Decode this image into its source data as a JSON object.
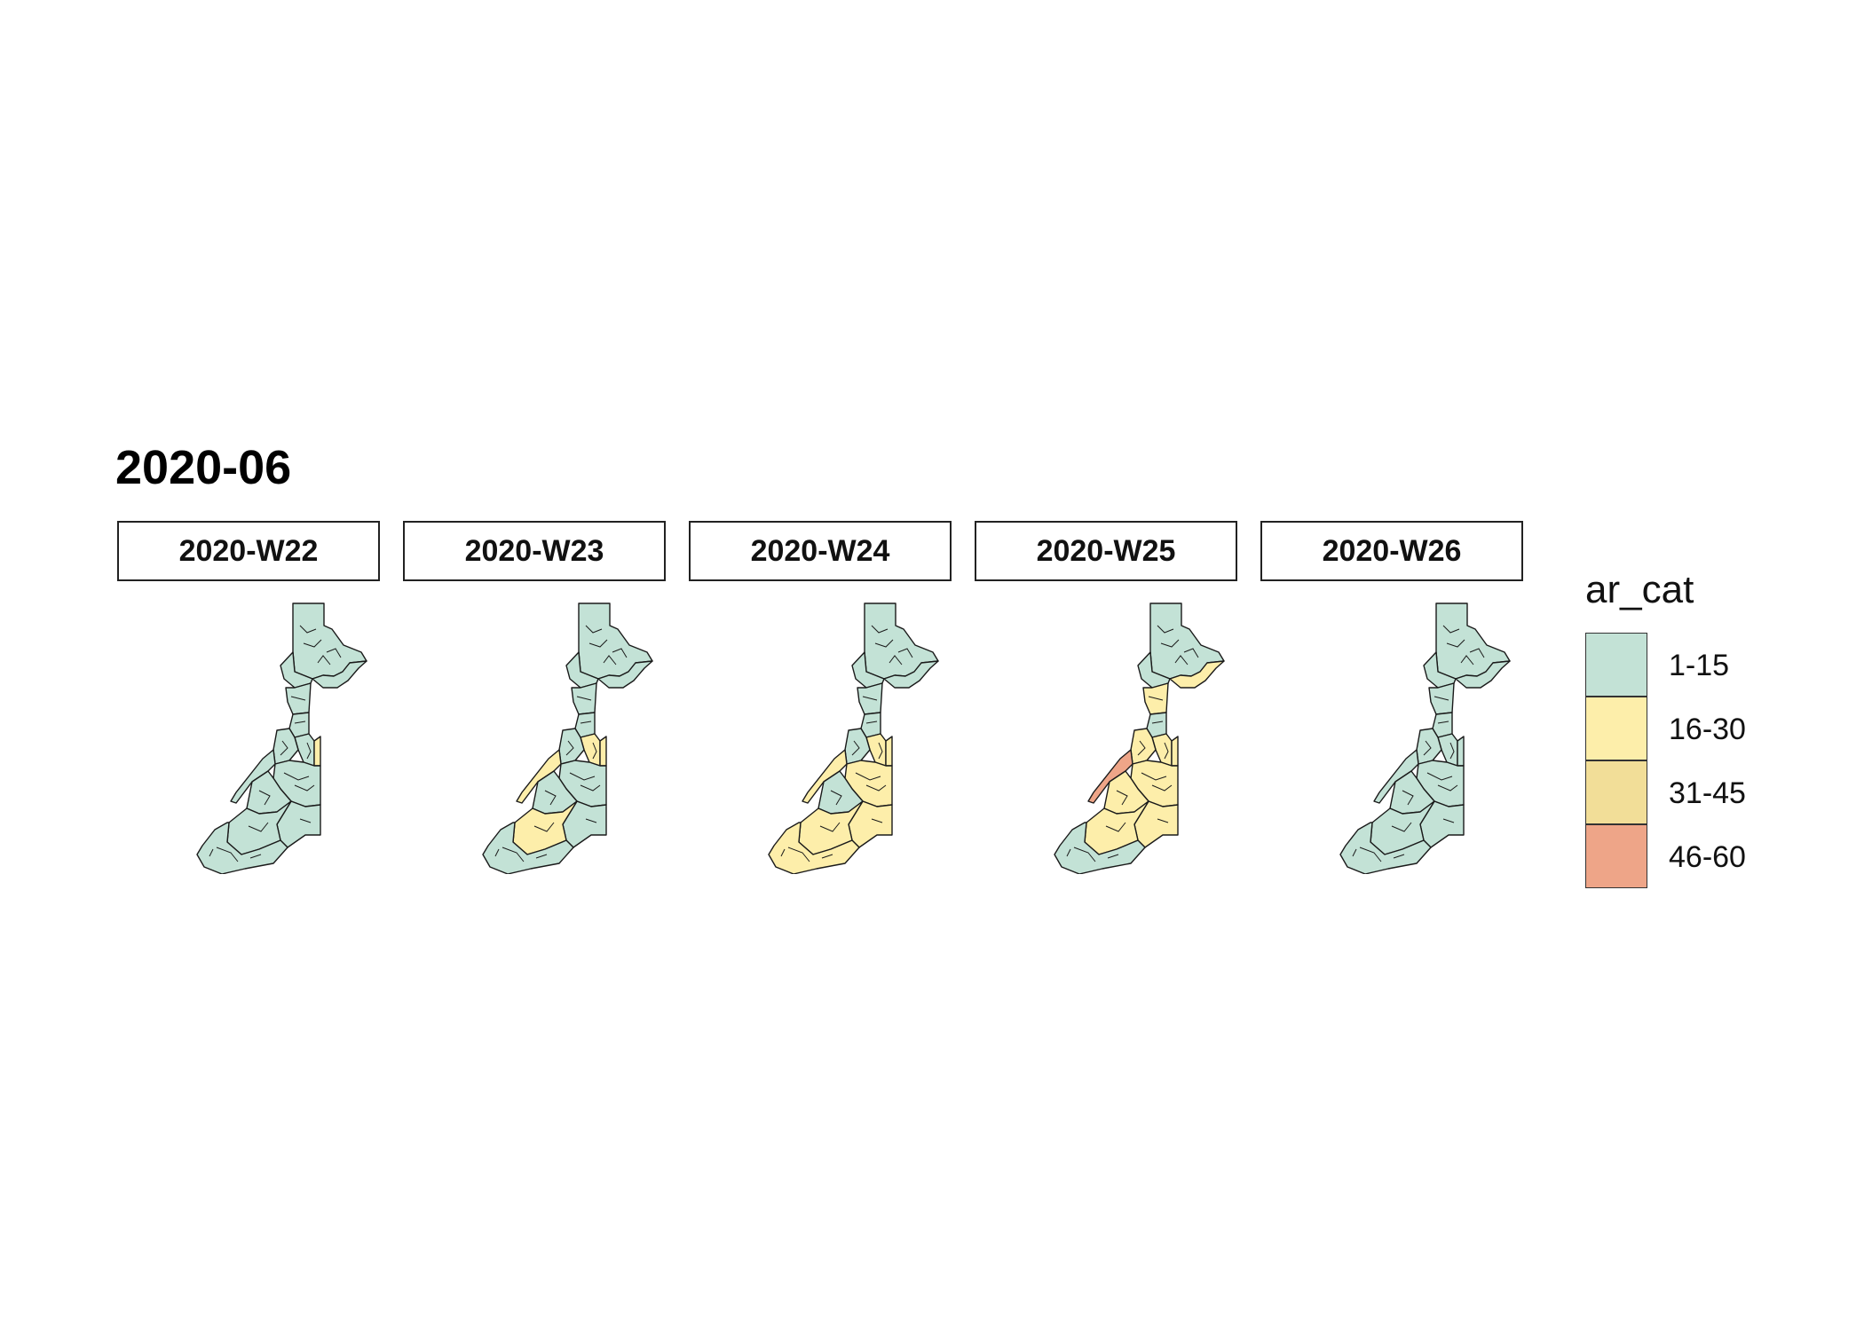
{
  "title": "2020-06",
  "panels": [
    {
      "week": "2020-W22",
      "categories": [
        "1-15",
        "1-15",
        "1-15",
        "1-15",
        "1-15",
        "1-15",
        "16-30",
        "1-15",
        "1-15",
        "1-15",
        "1-15",
        "1-15",
        "1-15",
        "1-15"
      ]
    },
    {
      "week": "2020-W23",
      "categories": [
        "1-15",
        "1-15",
        "1-15",
        "1-15",
        "1-15",
        "16-30",
        "16-30",
        "1-15",
        "16-30",
        "1-15",
        "1-15",
        "1-15",
        "16-30",
        "1-15"
      ]
    },
    {
      "week": "2020-W24",
      "categories": [
        "1-15",
        "1-15",
        "1-15",
        "1-15",
        "1-15",
        "16-30",
        "16-30",
        "1-15",
        "16-30",
        "16-30",
        "1-15",
        "16-30",
        "16-30",
        "16-30"
      ]
    },
    {
      "week": "2020-W25",
      "categories": [
        "1-15",
        "1-15",
        "16-30",
        "16-30",
        "1-15",
        "16-30",
        "16-30",
        "16-30",
        "46-60",
        "16-30",
        "16-30",
        "16-30",
        "16-30",
        "1-15"
      ]
    },
    {
      "week": "2020-W26",
      "categories": [
        "1-15",
        "1-15",
        "1-15",
        "1-15",
        "1-15",
        "1-15",
        "1-15",
        "1-15",
        "1-15",
        "1-15",
        "1-15",
        "1-15",
        "1-15",
        "1-15"
      ]
    }
  ],
  "legend": {
    "title": "ar_cat",
    "items": [
      {
        "label": "1-15",
        "color": "#c3e2d6"
      },
      {
        "label": "16-30",
        "color": "#fdeeaa"
      },
      {
        "label": "31-45",
        "color": "#f2de98"
      },
      {
        "label": "46-60",
        "color": "#eea588"
      }
    ]
  }
}
